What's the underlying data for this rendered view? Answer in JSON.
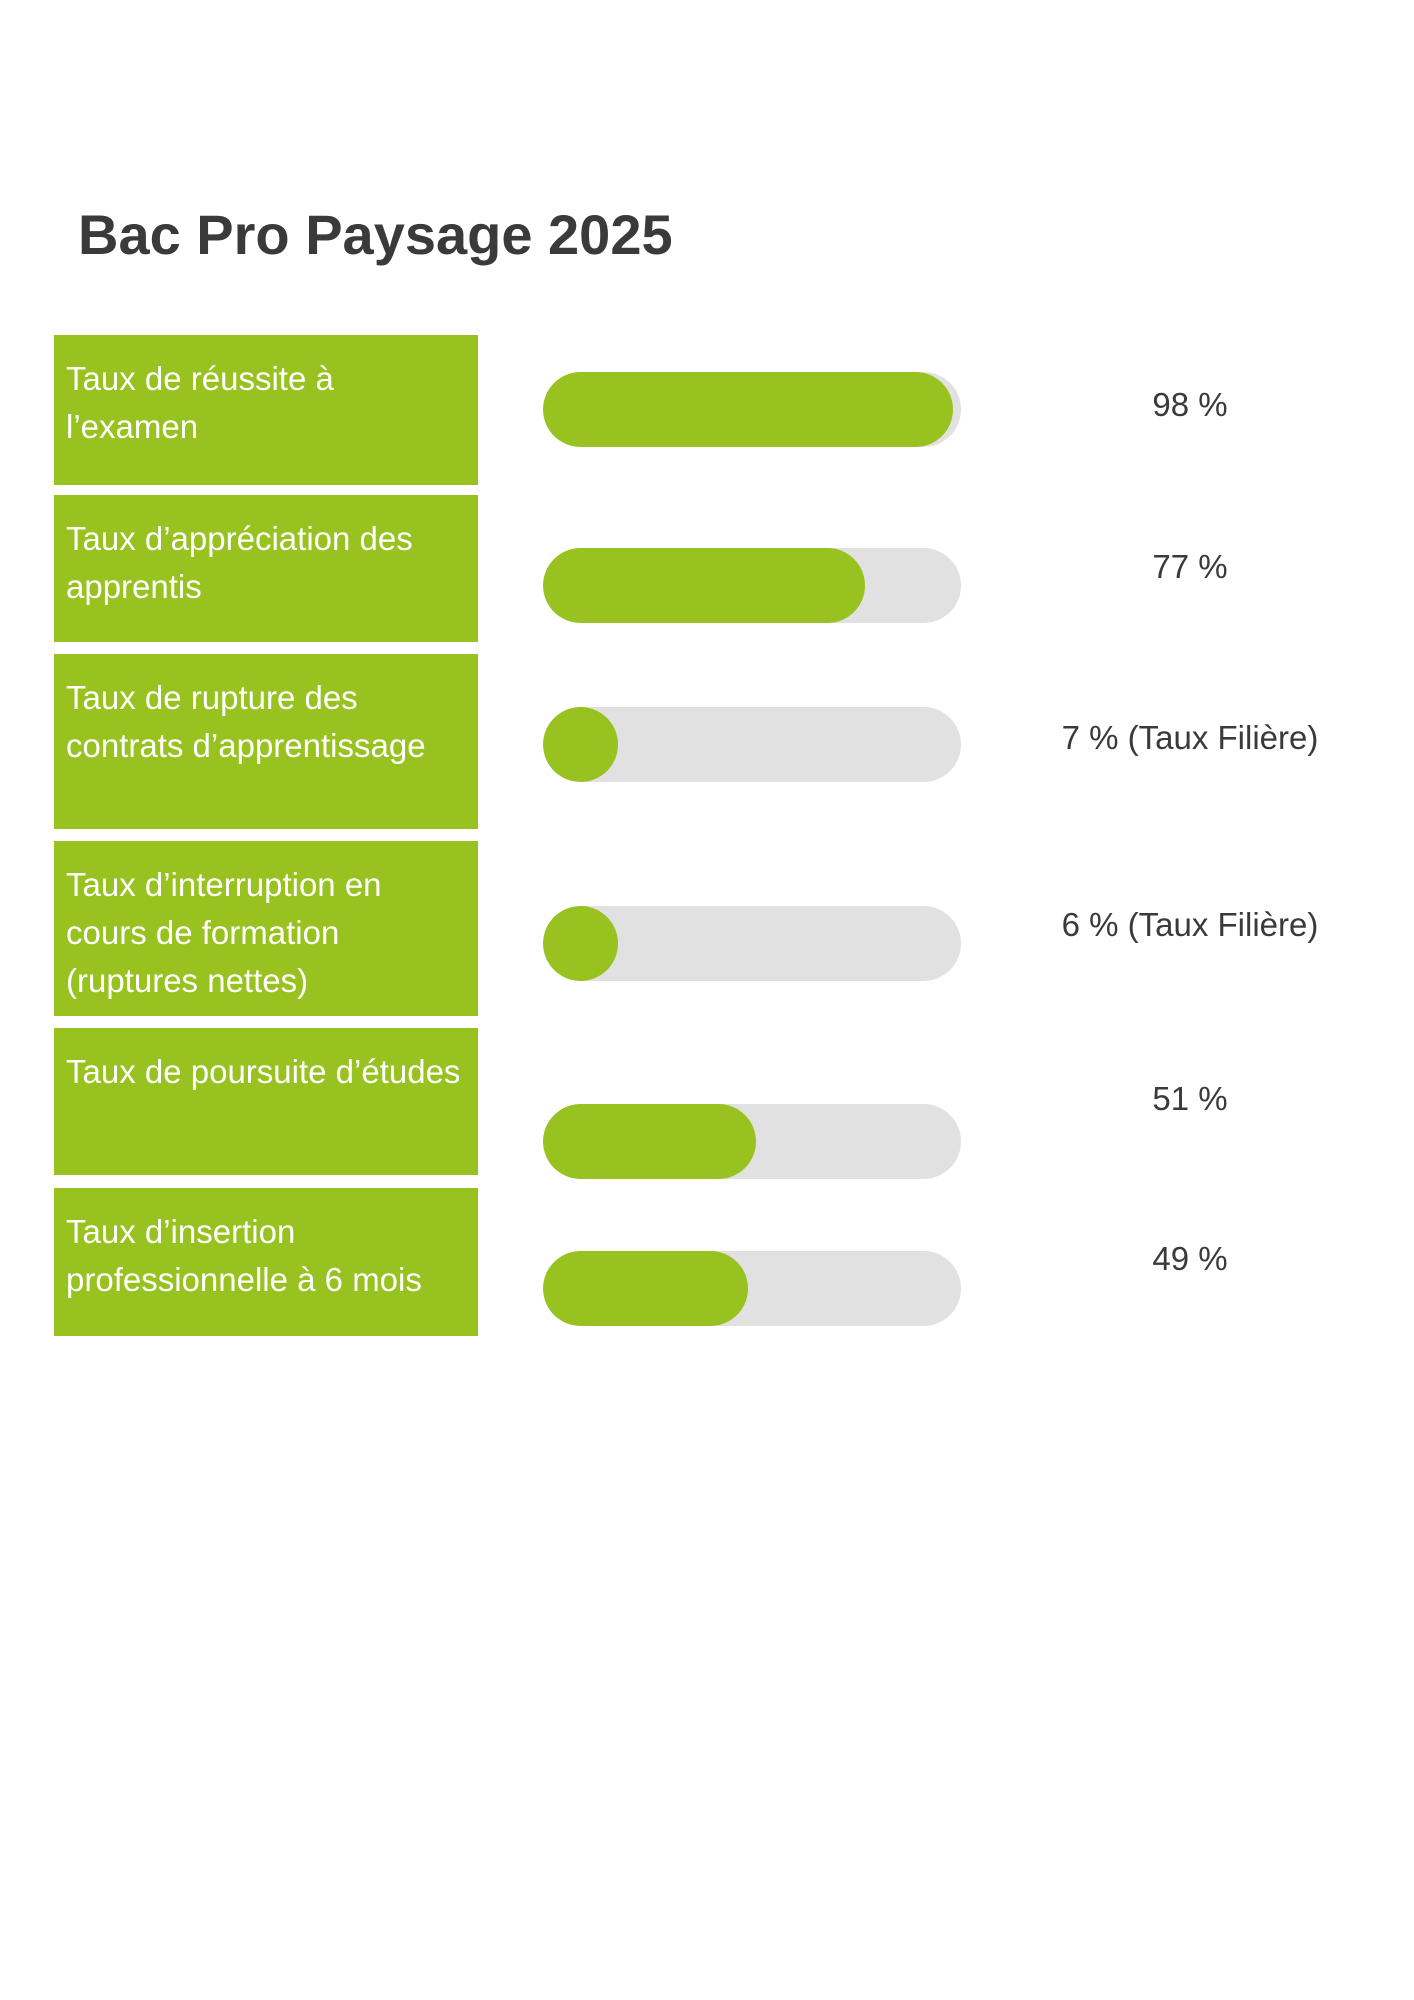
{
  "title": "Bac Pro Paysage 2025",
  "colors": {
    "accent": "#98c21f",
    "track": "#e1e1e1",
    "text": "#3a3a3a"
  },
  "chart_data": {
    "type": "bar",
    "title": "Bac Pro Paysage 2025",
    "categories": [
      "Taux de réussite à l’examen",
      "Taux d’appréciation des apprentis",
      "Taux de rupture des contrats d’apprentissage",
      "Taux d’interruption en cours de formation (ruptures nettes)",
      "Taux de poursuite d’études",
      "Taux d’insertion professionnelle à 6 mois"
    ],
    "values": [
      98,
      77,
      7,
      6,
      51,
      49
    ],
    "value_labels": [
      "98 %",
      "77 %",
      "7 % (Taux Filière)",
      "6 % (Taux Filière)",
      "51 %",
      "49 %"
    ],
    "ylim": [
      0,
      100
    ]
  },
  "rows": [
    {
      "label": "Taux de réussite à l’examen",
      "value": 98,
      "value_label": "98 %"
    },
    {
      "label": "Taux d’appréciation des apprentis",
      "value": 77,
      "value_label": "77 %"
    },
    {
      "label": "Taux de rupture des contrats d’apprentissage",
      "value": 7,
      "value_label": "7 % (Taux Filière)"
    },
    {
      "label": "Taux d’interruption en cours de formation (ruptures nettes)",
      "value": 6,
      "value_label": "6 % (Taux Filière)"
    },
    {
      "label": "Taux de poursuite d’études",
      "value": 51,
      "value_label": "51 %"
    },
    {
      "label": "Taux d’insertion professionnelle à 6 mois",
      "value": 49,
      "value_label": "49 %"
    }
  ]
}
